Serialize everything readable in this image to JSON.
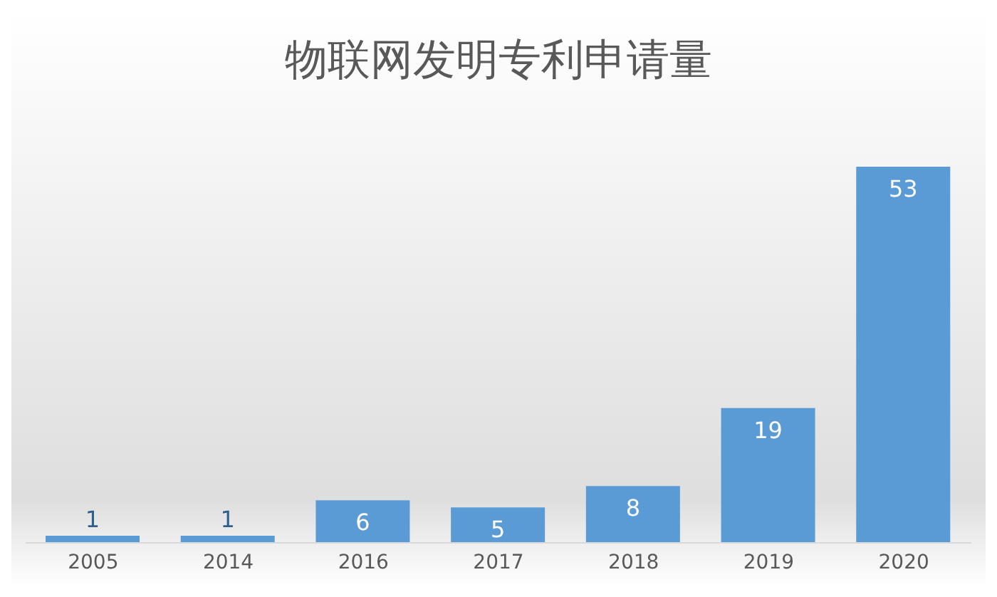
{
  "chart_data": {
    "type": "bar",
    "title": "物联网发明专利申请量",
    "categories": [
      "2005",
      "2014",
      "2016",
      "2017",
      "2018",
      "2019",
      "2020"
    ],
    "values": [
      1,
      1,
      6,
      5,
      8,
      19,
      53
    ],
    "color": "#5b9bd5",
    "data_labels": true,
    "grid": false
  }
}
